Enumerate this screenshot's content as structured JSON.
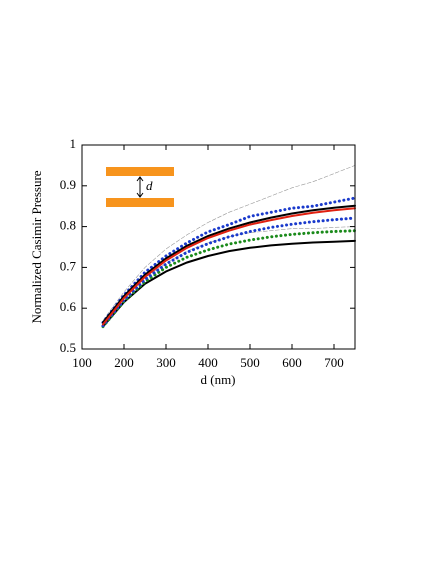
{
  "chart_data": {
    "type": "line",
    "xlabel": "d (nm)",
    "ylabel": "Normalized Casimir Pressure",
    "annotation": "d",
    "xlim": [
      100,
      750
    ],
    "ylim": [
      0.5,
      1
    ],
    "xticks": [
      100,
      200,
      300,
      400,
      500,
      600,
      700
    ],
    "yticks": [
      0.5,
      0.6,
      0.7,
      0.8,
      0.9,
      1
    ],
    "x": [
      150,
      200,
      250,
      300,
      350,
      400,
      450,
      500,
      550,
      600,
      650,
      700,
      750
    ],
    "series": [
      {
        "color": "#999999",
        "style": "dashed",
        "values": [
          0.57,
          0.64,
          0.7,
          0.745,
          0.78,
          0.81,
          0.835,
          0.855,
          0.875,
          0.895,
          0.91,
          0.93,
          0.95
        ]
      },
      {
        "color": "#999999",
        "style": "dashed",
        "values": [
          0.56,
          0.625,
          0.675,
          0.71,
          0.74,
          0.76,
          0.775,
          0.785,
          0.79,
          0.795,
          0.795,
          0.798,
          0.8
        ]
      },
      {
        "color": "#000000",
        "style": "solid",
        "values": [
          0.555,
          0.615,
          0.66,
          0.69,
          0.712,
          0.728,
          0.74,
          0.748,
          0.754,
          0.758,
          0.761,
          0.763,
          0.765
        ]
      },
      {
        "color": "#1a8a1a",
        "style": "dotted",
        "values": [
          0.555,
          0.617,
          0.665,
          0.7,
          0.725,
          0.743,
          0.757,
          0.767,
          0.775,
          0.781,
          0.785,
          0.788,
          0.79
        ]
      },
      {
        "color": "#1a3acc",
        "style": "dotted",
        "values": [
          0.557,
          0.62,
          0.67,
          0.708,
          0.737,
          0.758,
          0.775,
          0.788,
          0.798,
          0.806,
          0.812,
          0.817,
          0.821
        ]
      },
      {
        "color": "#1a3acc",
        "style": "dotted",
        "values": [
          0.565,
          0.632,
          0.688,
          0.728,
          0.76,
          0.787,
          0.805,
          0.825,
          0.835,
          0.845,
          0.85,
          0.86,
          0.87
        ]
      },
      {
        "color": "#000000",
        "style": "solid",
        "values": [
          0.565,
          0.63,
          0.682,
          0.722,
          0.753,
          0.777,
          0.795,
          0.81,
          0.822,
          0.832,
          0.84,
          0.846,
          0.851
        ]
      },
      {
        "color": "#e02010",
        "style": "solid",
        "values": [
          0.56,
          0.625,
          0.677,
          0.717,
          0.748,
          0.772,
          0.79,
          0.805,
          0.816,
          0.826,
          0.834,
          0.84,
          0.845
        ]
      }
    ]
  }
}
